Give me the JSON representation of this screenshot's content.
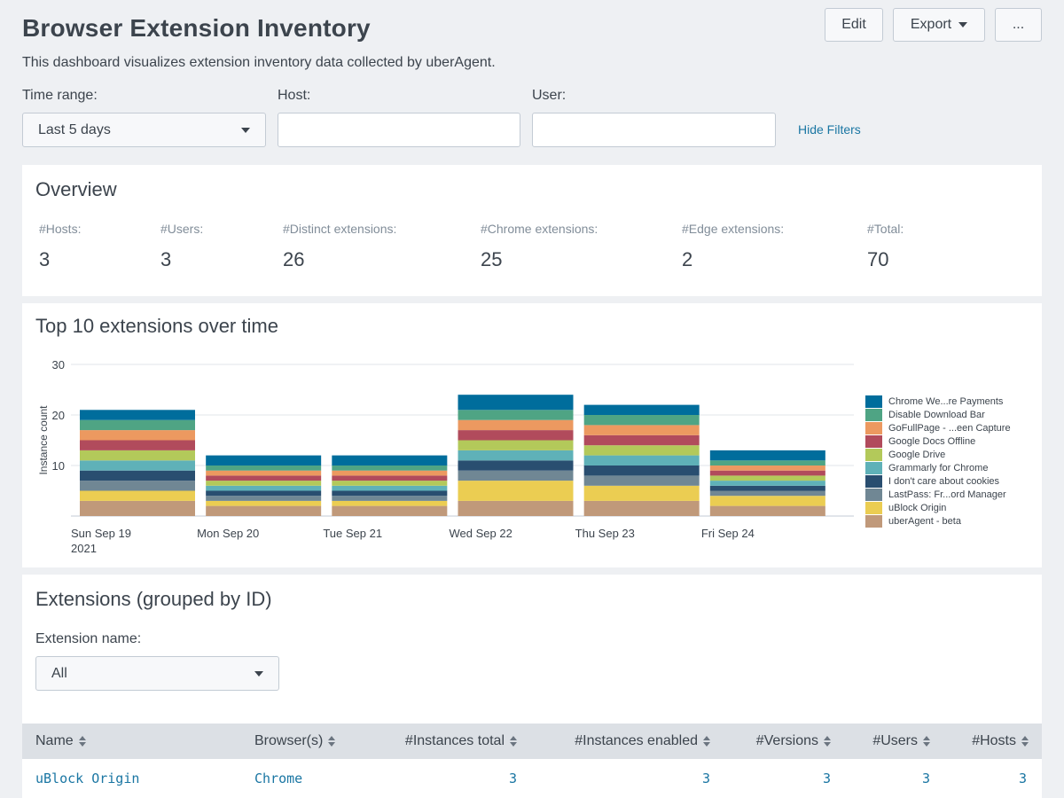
{
  "header": {
    "title": "Browser Extension Inventory",
    "description": "This dashboard visualizes extension inventory data collected by uberAgent.",
    "edit_label": "Edit",
    "export_label": "Export",
    "more_label": "..."
  },
  "filters": {
    "time_range_label": "Time range:",
    "time_range_value": "Last 5 days",
    "host_label": "Host:",
    "host_value": "",
    "user_label": "User:",
    "user_value": "",
    "hide_filters_label": "Hide Filters"
  },
  "overview": {
    "title": "Overview",
    "stats": [
      {
        "label": "#Hosts:",
        "value": "3"
      },
      {
        "label": "#Users:",
        "value": "3"
      },
      {
        "label": "#Distinct extensions:",
        "value": "26"
      },
      {
        "label": "#Chrome extensions:",
        "value": "25"
      },
      {
        "label": "#Edge extensions:",
        "value": "2"
      },
      {
        "label": "#Total:",
        "value": "70"
      }
    ]
  },
  "top10": {
    "title": "Top 10 extensions over time"
  },
  "chart_data": {
    "type": "bar",
    "stacked": true,
    "ylabel": "Instance count",
    "ylim": [
      0,
      30
    ],
    "yticks": [
      "30",
      "20",
      "10"
    ],
    "xtick_labels": [
      "Sun Sep 19",
      "Mon Sep 20",
      "Tue Sep 21",
      "Wed Sep 22",
      "Thu Sep 23",
      "Fri Sep 24"
    ],
    "x_year_label": "2021",
    "categories": [
      "2021-09-19",
      "2021-09-20",
      "2021-09-21",
      "2021-09-22",
      "2021-09-23",
      "2021-09-24"
    ],
    "grid": true,
    "legend_position": "right",
    "series": [
      {
        "name": "uberAgent - beta",
        "color": "#c0997a",
        "values": [
          3,
          2,
          2,
          3,
          3,
          2
        ]
      },
      {
        "name": "uBlock Origin",
        "color": "#ebcd52",
        "values": [
          2,
          1,
          1,
          4,
          3,
          2
        ]
      },
      {
        "name": "LastPass: Fr...ord Manager",
        "color": "#708794",
        "values": [
          2,
          1,
          1,
          2,
          2,
          1
        ]
      },
      {
        "name": "I don't care about cookies",
        "color": "#294e70",
        "values": [
          2,
          1,
          1,
          2,
          2,
          1
        ]
      },
      {
        "name": "Grammarly for Chrome",
        "color": "#5fb1b8",
        "values": [
          2,
          1,
          1,
          2,
          2,
          1
        ]
      },
      {
        "name": "Google Drive",
        "color": "#b3c95a",
        "values": [
          2,
          1,
          1,
          2,
          2,
          1
        ]
      },
      {
        "name": "Google Docs Offline",
        "color": "#b14b5c",
        "values": [
          2,
          1,
          1,
          2,
          2,
          1
        ]
      },
      {
        "name": "GoFullPage - ...een Capture",
        "color": "#ec9960",
        "values": [
          2,
          1,
          1,
          2,
          2,
          1
        ]
      },
      {
        "name": "Disable Download Bar",
        "color": "#4fa484",
        "values": [
          2,
          1,
          1,
          2,
          2,
          1
        ]
      },
      {
        "name": "Chrome We...re Payments",
        "color": "#006d9c",
        "values": [
          2,
          2,
          2,
          3,
          2,
          2
        ]
      }
    ]
  },
  "extensions": {
    "title": "Extensions (grouped by ID)",
    "name_filter_label": "Extension name:",
    "name_filter_value": "All",
    "columns": [
      "Name",
      "Browser(s)",
      "#Instances total",
      "#Instances enabled",
      "#Versions",
      "#Users",
      "#Hosts"
    ],
    "rows": [
      [
        "uBlock Origin",
        "Chrome",
        "3",
        "3",
        "3",
        "3",
        "3"
      ]
    ]
  }
}
